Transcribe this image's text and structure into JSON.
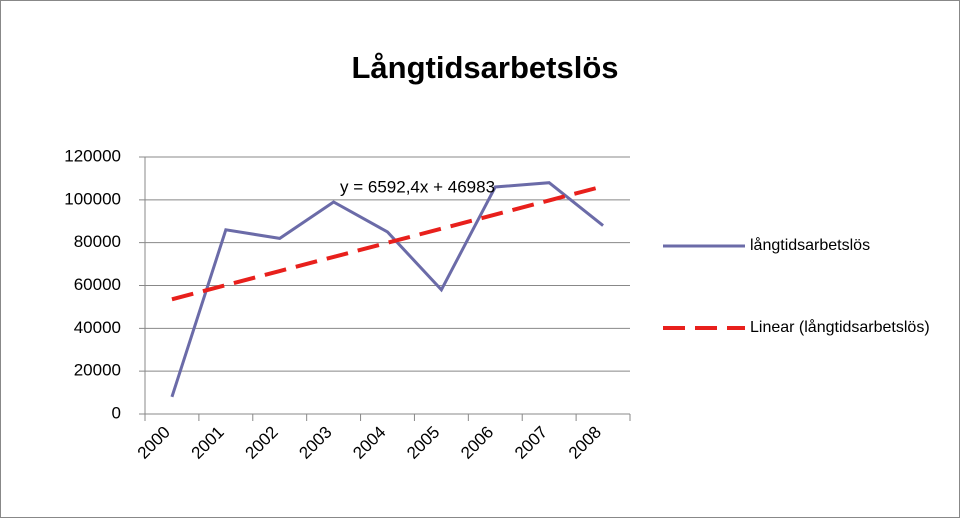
{
  "chart_data": {
    "type": "line",
    "title": "Långtidsarbetslös",
    "categories": [
      "2000",
      "2001",
      "2002",
      "2003",
      "2004",
      "2005",
      "2006",
      "2007",
      "2008"
    ],
    "series": [
      {
        "name": "långtidsarbetslös",
        "color": "#6b6ba8",
        "values": [
          8000,
          86000,
          82000,
          99000,
          85000,
          58000,
          106000,
          108000,
          88000
        ]
      },
      {
        "name": "Linear (långtidsarbetslös)",
        "color": "#e8201c",
        "dashed": true,
        "values": [
          53575,
          60168,
          66760,
          73353,
          79945,
          86538,
          93130,
          99723,
          106315
        ]
      }
    ],
    "annotation": "y = 6592,4x + 46983",
    "ylim": [
      0,
      120000
    ],
    "yticks": [
      0,
      20000,
      40000,
      60000,
      80000,
      100000,
      120000
    ],
    "grid": true,
    "legend": "right"
  }
}
